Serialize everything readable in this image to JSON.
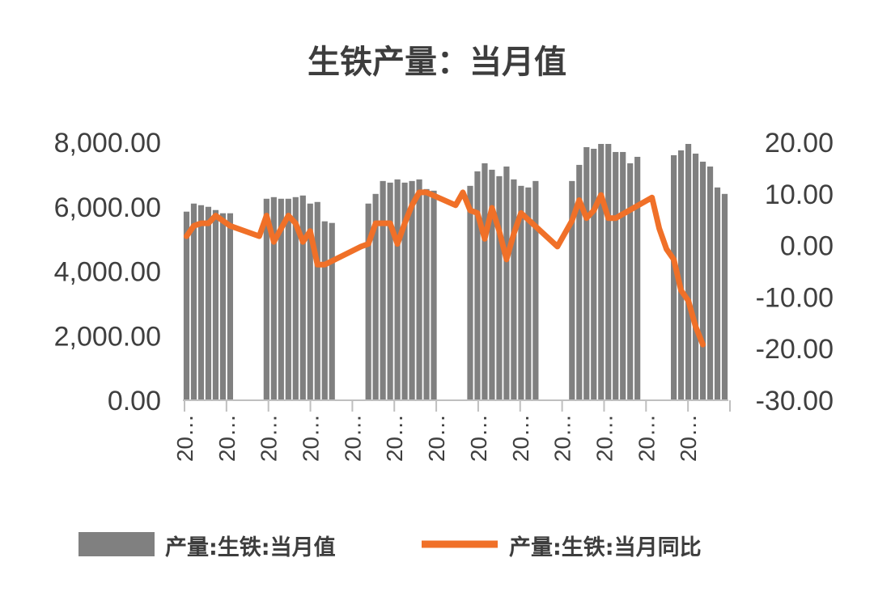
{
  "chart_data": {
    "type": "bar",
    "title": "生铁产量：当月值",
    "xlabel": "",
    "ylabel": "",
    "y_left_ticks": [
      "8,000.00",
      "6,000.00",
      "4,000.00",
      "2,000.00",
      "0.00"
    ],
    "y_right_ticks": [
      "20.00",
      "10.00",
      "0.00",
      "-10.00",
      "-20.00",
      "-30.00"
    ],
    "ylim_left": [
      0,
      8000
    ],
    "ylim_right": [
      -30,
      20
    ],
    "x_tick_labels": [
      "20…",
      "20…",
      "20…",
      "20…",
      "20…",
      "20…",
      "20…",
      "20…",
      "20…",
      "20…",
      "20…",
      "20…",
      "20…"
    ],
    "legend_position": "bottom",
    "series": [
      {
        "name": "产量:生铁:当月值",
        "type": "bar",
        "axis": "left",
        "color": "#808080",
        "values": [
          5850,
          6100,
          6050,
          6000,
          5900,
          5800,
          5800,
          null,
          null,
          null,
          null,
          6250,
          6300,
          6250,
          6250,
          6300,
          6350,
          6100,
          6150,
          5550,
          5500,
          null,
          null,
          null,
          null,
          6100,
          6400,
          6800,
          6750,
          6850,
          6750,
          6800,
          6850,
          6550,
          6500,
          null,
          null,
          null,
          null,
          6650,
          7100,
          7350,
          7150,
          6950,
          7250,
          6850,
          6650,
          6600,
          6800,
          null,
          null,
          null,
          null,
          6800,
          7300,
          7850,
          7800,
          7950,
          7950,
          7700,
          7700,
          7350,
          7550,
          null,
          null,
          null,
          null,
          7600,
          7750,
          7950,
          7650,
          7400,
          7250,
          6600,
          6400
        ]
      },
      {
        "name": "产量:生铁:当月同比",
        "type": "line",
        "axis": "right",
        "color": "#f07028",
        "values": [
          1.8,
          3.8,
          4.3,
          4.3,
          5.8,
          4.8,
          3.8,
          null,
          null,
          null,
          1.8,
          5.8,
          0.7,
          3.3,
          5.8,
          4.3,
          0.7,
          2.8,
          -3.7,
          -3.7,
          null,
          null,
          null,
          null,
          -0.2,
          0.3,
          4.3,
          4.3,
          4.3,
          0.3,
          4.3,
          7.8,
          10.3,
          10.3,
          null,
          null,
          null,
          7.8,
          10.3,
          6.8,
          6.3,
          1.3,
          7.3,
          2.8,
          -2.7,
          2.3,
          6.3,
          null,
          null,
          null,
          null,
          -0.2,
          2.3,
          4.8,
          8.8,
          5.3,
          6.8,
          9.8,
          5.3,
          5.3,
          null,
          null,
          null,
          null,
          9.3,
          3.3,
          -0.7,
          -2.7,
          -8.7,
          -10.7,
          -15.7,
          -19.2,
          null
        ]
      }
    ]
  }
}
